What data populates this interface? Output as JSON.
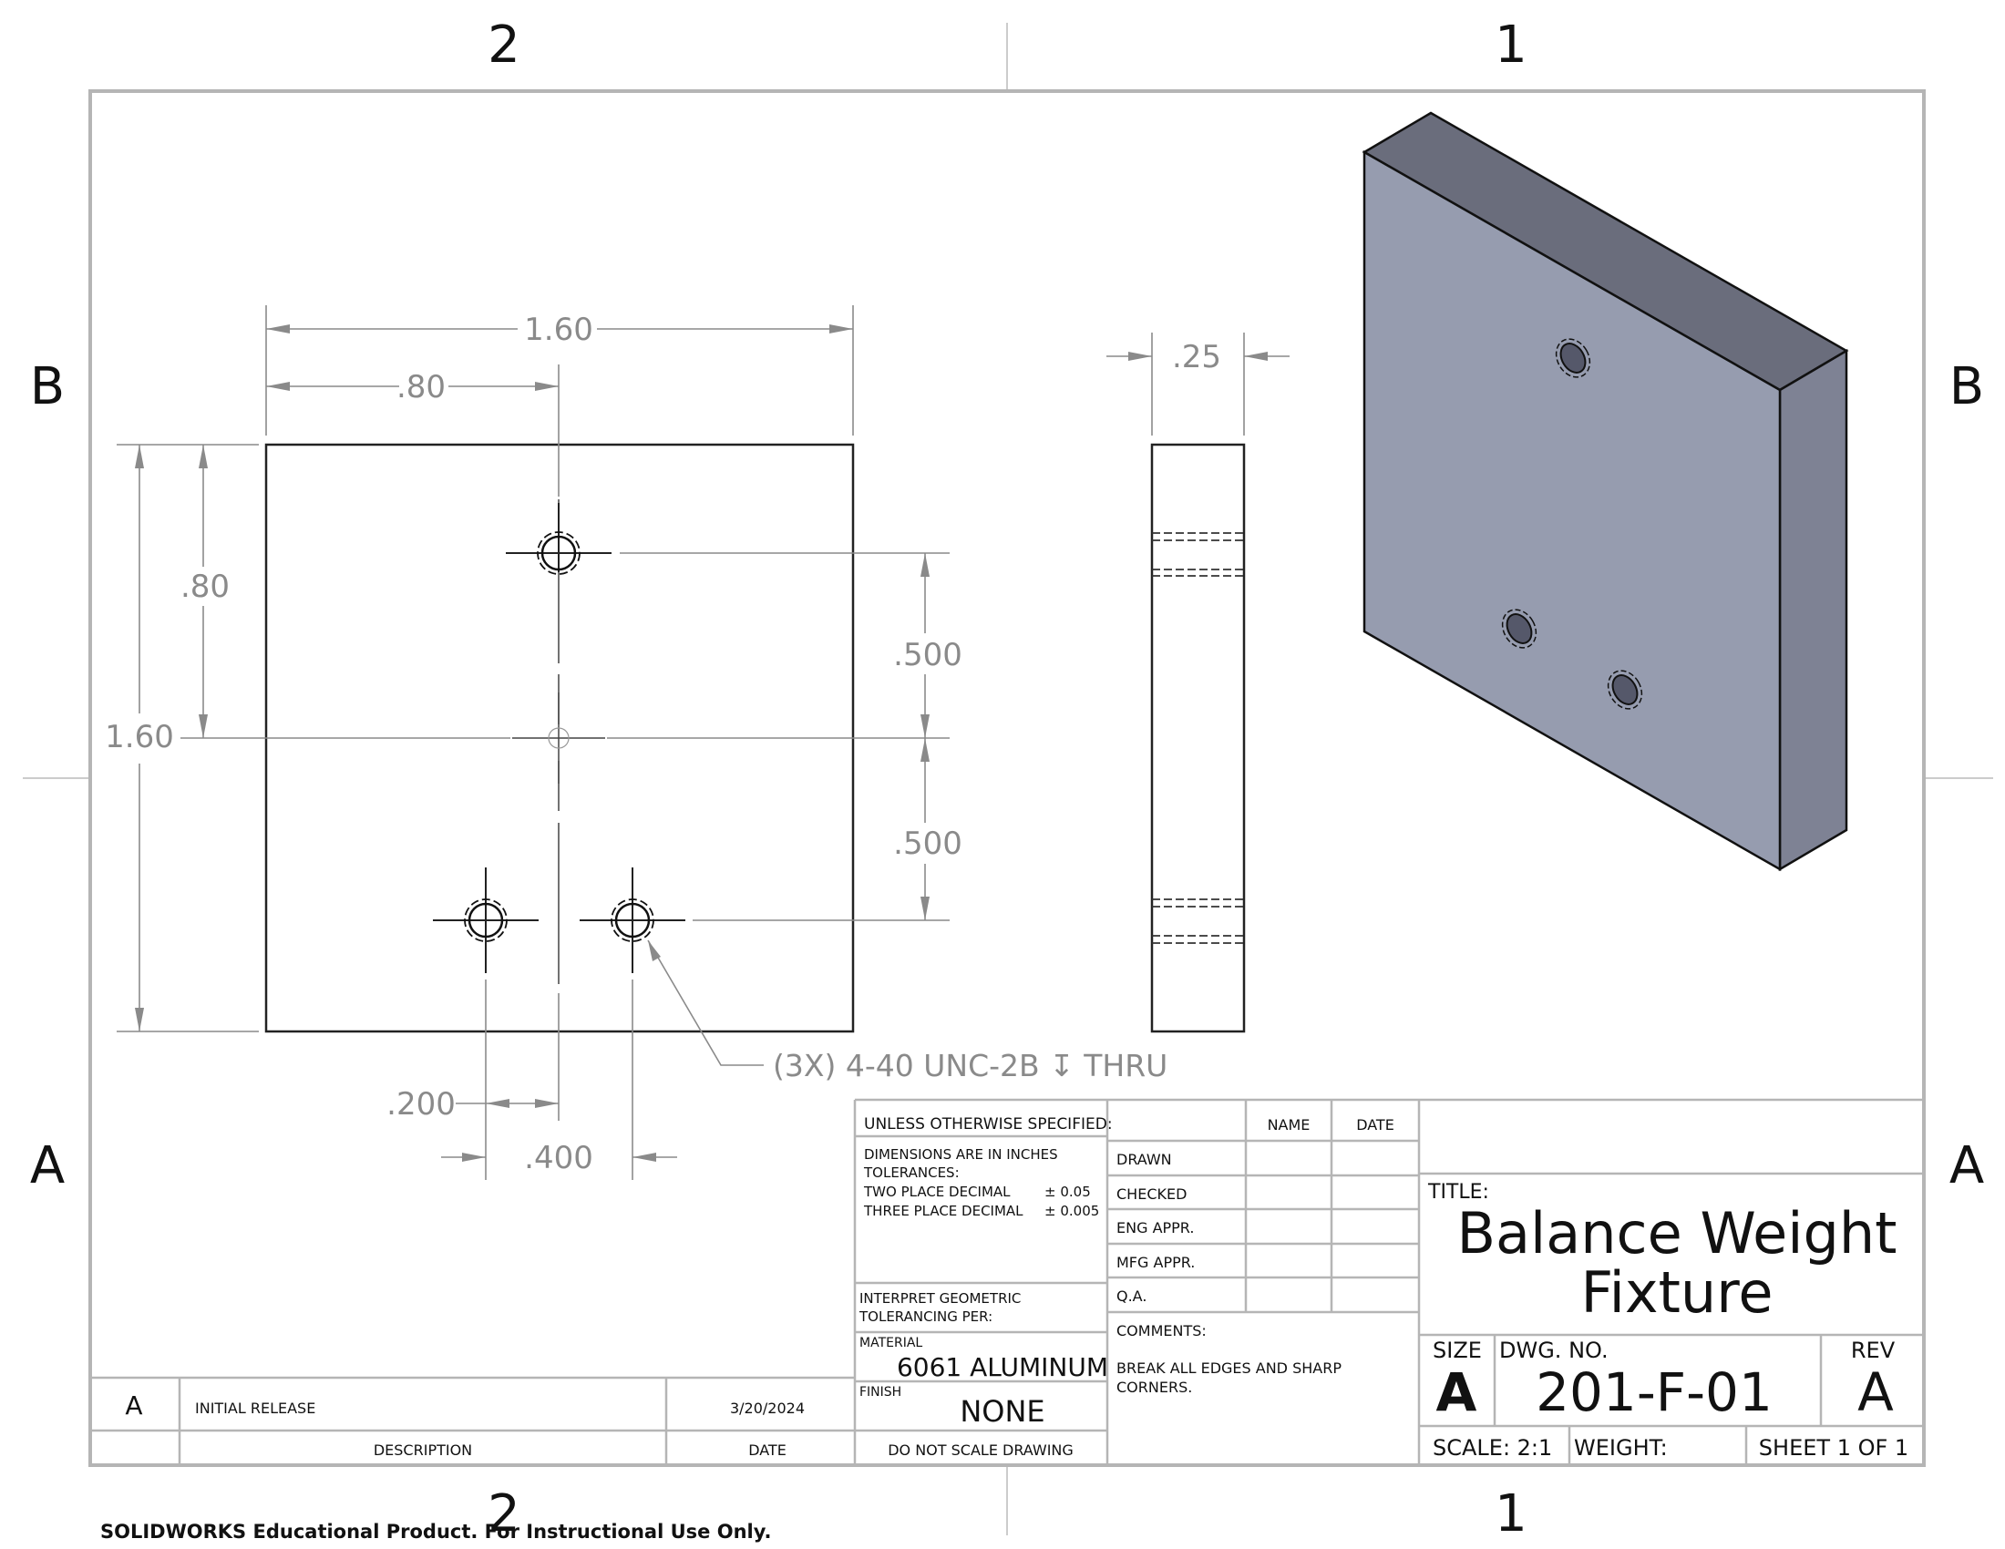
{
  "zones": {
    "top": [
      "2",
      "1"
    ],
    "bottom": [
      "2",
      "1"
    ],
    "left": [
      "B",
      "A"
    ],
    "right": [
      "B",
      "A"
    ]
  },
  "front_view": {
    "width": "1.60",
    "half_width": ".80",
    "height": "1.60",
    "half_height": ".80",
    "hole_spacing_upper": ".500",
    "hole_spacing_lower": ".500",
    "bottom_offset": ".200",
    "bottom_spacing": ".400",
    "hole_callout": "(3X) 4-40 UNC-2B ↧ THRU"
  },
  "side_view": {
    "thickness": ".25"
  },
  "title_block": {
    "unless_specified": "UNLESS OTHERWISE SPECIFIED:",
    "dimensions_note": "DIMENSIONS ARE IN INCHES",
    "tolerances": "TOLERANCES:",
    "two_place": "TWO PLACE DECIMAL",
    "two_place_tol": "± 0.05",
    "three_place": "THREE PLACE DECIMAL",
    "three_place_tol": "± 0.005",
    "interpret": "INTERPRET GEOMETRIC",
    "tolerancing_per": "TOLERANCING PER:",
    "material_label": "MATERIAL",
    "material": "6061 ALUMINUM",
    "finish_label": "FINISH",
    "finish": "NONE",
    "do_not_scale": "DO NOT SCALE DRAWING",
    "name_header": "NAME",
    "date_header": "DATE",
    "drawn": "DRAWN",
    "checked": "CHECKED",
    "eng_appr": "ENG APPR.",
    "mfg_appr": "MFG APPR.",
    "qa": "Q.A.",
    "comments_label": "COMMENTS:",
    "comments_line1": "BREAK ALL EDGES AND SHARP",
    "comments_line2": "CORNERS.",
    "title_label": "TITLE:",
    "title_line1": "Balance Weight",
    "title_line2": "Fixture",
    "size_label": "SIZE",
    "size": "A",
    "dwg_no_label": "DWG.  NO.",
    "dwg_no": "201-F-01",
    "rev_label": "REV",
    "rev": "A",
    "scale": "SCALE: 2:1",
    "weight": "WEIGHT:",
    "sheet": "SHEET 1 OF 1"
  },
  "revision_block": {
    "rev": "A",
    "description": "INITIAL RELEASE",
    "date": "3/20/2024",
    "description_header": "DESCRIPTION",
    "date_header": "DATE"
  },
  "footer": "SOLIDWORKS Educational Product. For Instructional Use Only.",
  "colors": {
    "border": "#b5b5b5",
    "dimension": "#8a8a8a",
    "part_face": "#969caf",
    "part_top": "#6a6d7c",
    "part_side": "#7e8294"
  }
}
